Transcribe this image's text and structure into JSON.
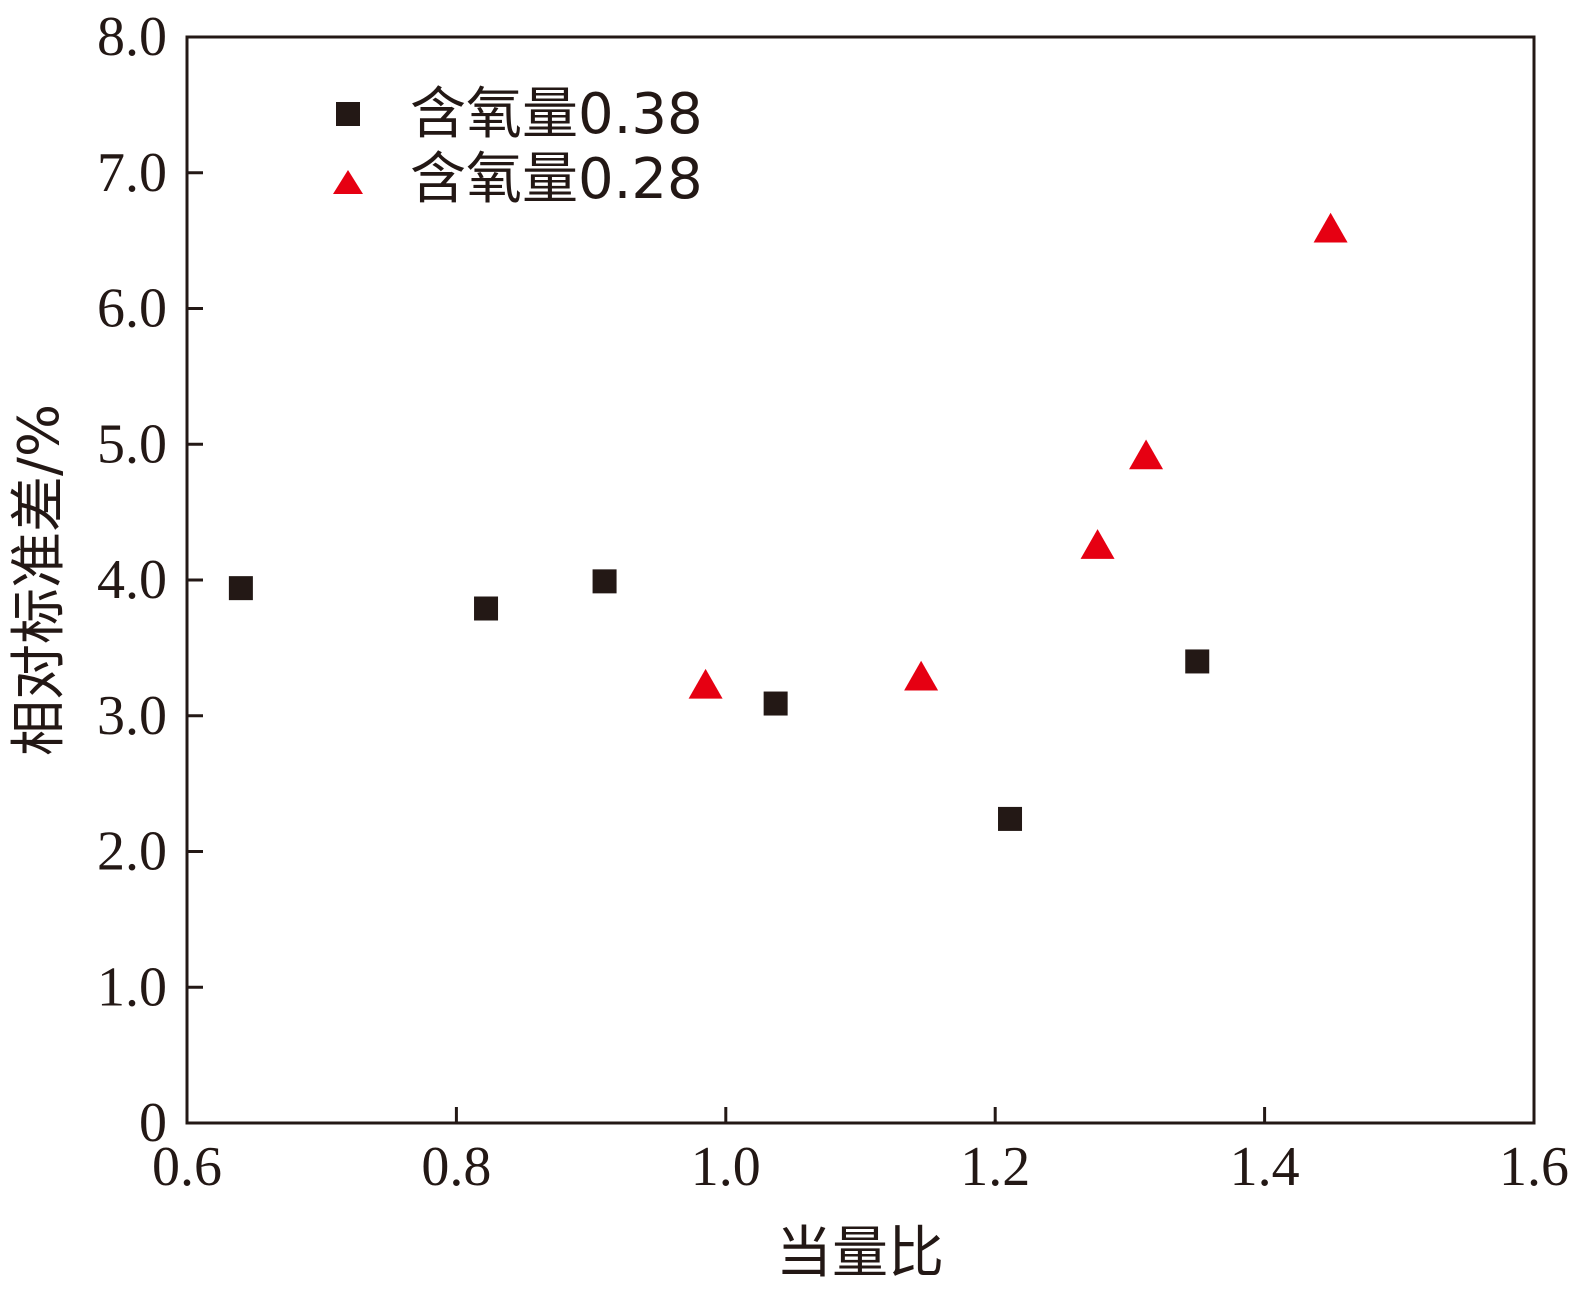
{
  "chart_data": {
    "type": "scatter",
    "title": "",
    "xlabel": "当量比",
    "ylabel": "相对标准差/%",
    "xlim": [
      0.6,
      1.6
    ],
    "ylim": [
      0,
      8.0
    ],
    "xticks": [
      0.6,
      0.8,
      1.0,
      1.2,
      1.4,
      1.6
    ],
    "xtick_labels": [
      "0.6",
      "0.8",
      "1.0",
      "1.2",
      "1.4",
      "1.6"
    ],
    "yticks": [
      0,
      1.0,
      2.0,
      3.0,
      4.0,
      5.0,
      6.0,
      7.0,
      8.0
    ],
    "ytick_labels": [
      "0",
      "1.0",
      "2.0",
      "3.0",
      "4.0",
      "5.0",
      "6.0",
      "7.0",
      "8.0"
    ],
    "grid": false,
    "legend_position": "top-left",
    "series": [
      {
        "name": "含氧量0.38",
        "marker": "square",
        "color": "#231815",
        "x": [
          0.64,
          0.822,
          0.91,
          1.037,
          1.211,
          1.35
        ],
        "y": [
          3.94,
          3.79,
          3.99,
          3.09,
          2.24,
          3.4
        ]
      },
      {
        "name": "含氧量0.28",
        "marker": "triangle",
        "color": "#e60012",
        "x": [
          0.985,
          1.145,
          1.276,
          1.312,
          1.449
        ],
        "y": [
          3.22,
          3.28,
          4.25,
          4.91,
          6.58
        ]
      }
    ]
  }
}
